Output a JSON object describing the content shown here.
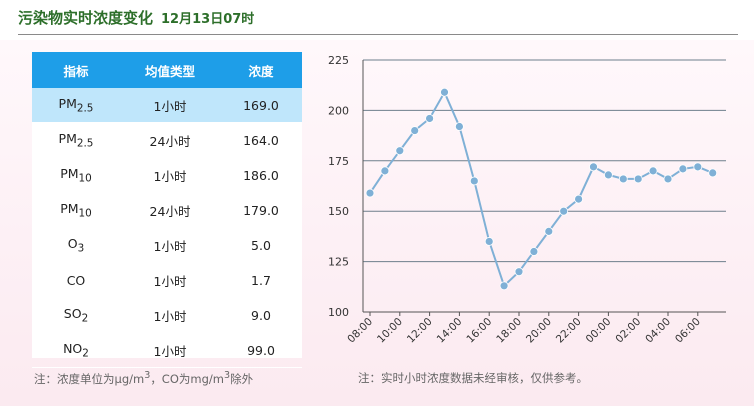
{
  "header": {
    "title": "污染物实时浓度变化",
    "time": "12月13日07时"
  },
  "table": {
    "columns": [
      "指标",
      "均值类型",
      "浓度"
    ],
    "rows": [
      {
        "base": "PM",
        "sub": "2.5",
        "avg": "1小时",
        "value": "169.0",
        "highlight": true
      },
      {
        "base": "PM",
        "sub": "2.5",
        "avg": "24小时",
        "value": "164.0",
        "highlight": false
      },
      {
        "base": "PM",
        "sub": "10",
        "avg": "1小时",
        "value": "186.0",
        "highlight": false
      },
      {
        "base": "PM",
        "sub": "10",
        "avg": "24小时",
        "value": "179.0",
        "highlight": false
      },
      {
        "base": "O",
        "sub": "3",
        "avg": "1小时",
        "value": "5.0",
        "highlight": false
      },
      {
        "base": "CO",
        "sub": "",
        "avg": "1小时",
        "value": "1.7",
        "highlight": false
      },
      {
        "base": "SO",
        "sub": "2",
        "avg": "1小时",
        "value": "9.0",
        "highlight": false
      },
      {
        "base": "NO",
        "sub": "2",
        "avg": "1小时",
        "value": "99.0",
        "highlight": false
      }
    ]
  },
  "notes": {
    "left_prefix": "注：浓度单位为μg/m",
    "left_sup1": "3",
    "left_mid": "，CO为mg/m",
    "left_sup2": "3",
    "left_suffix": "除外",
    "right": "注：实时小时浓度数据未经审核，仅供参考。"
  },
  "colors": {
    "header_text": "#2d6f2a",
    "table_header_bg": "#1e9ee8",
    "row_highlight": "#bfe6fb",
    "line": "#7fb0d6",
    "marker": "#7fb0d6",
    "grid": "#6e7f8c"
  },
  "chart_data": {
    "type": "line",
    "title": "",
    "xlabel": "",
    "ylabel": "",
    "ylim": [
      100,
      225
    ],
    "yticks": [
      100,
      125,
      150,
      175,
      200,
      225
    ],
    "grid": true,
    "x": [
      "08:00",
      "09:00",
      "10:00",
      "11:00",
      "12:00",
      "13:00",
      "14:00",
      "15:00",
      "16:00",
      "17:00",
      "18:00",
      "19:00",
      "20:00",
      "21:00",
      "22:00",
      "23:00",
      "00:00",
      "01:00",
      "02:00",
      "03:00",
      "04:00",
      "05:00",
      "06:00",
      "07:00"
    ],
    "xtick_labels": [
      "08:00",
      "10:00",
      "12:00",
      "14:00",
      "16:00",
      "18:00",
      "20:00",
      "22:00",
      "00:00",
      "02:00",
      "04:00",
      "06:00"
    ],
    "series": [
      {
        "values": [
          159,
          170,
          180,
          190,
          196,
          209,
          192,
          165,
          135,
          113,
          120,
          130,
          140,
          150,
          156,
          172,
          168,
          166,
          166,
          170,
          166,
          171,
          172,
          169
        ]
      }
    ]
  }
}
